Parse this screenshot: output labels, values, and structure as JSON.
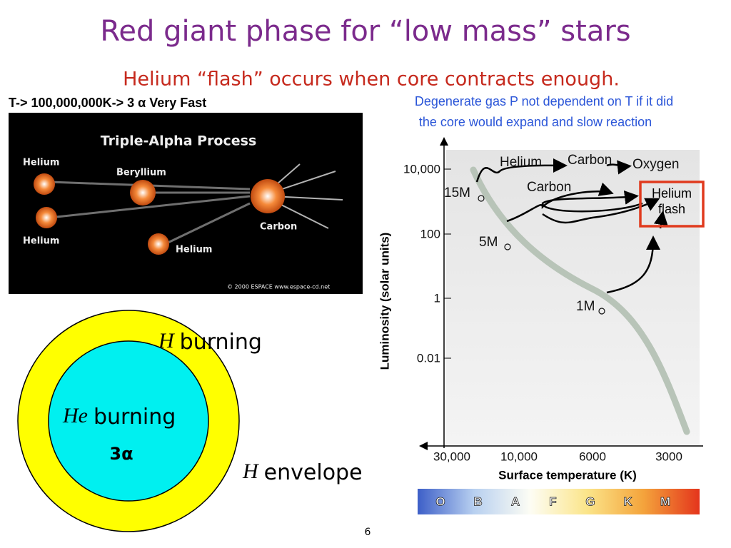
{
  "header": {
    "title": "Red giant phase for “low mass” stars",
    "subtitle": "Helium “flash” occurs when core contracts enough."
  },
  "notes": {
    "left": "T-> 100,000,000K-> 3 α  Very Fast",
    "right_lines": [
      "Degenerate gas P not dependent on T if it did",
      "the core would expand and slow reaction"
    ]
  },
  "triple_alpha": {
    "title": "Triple-Alpha Process",
    "labels": [
      "Helium",
      "Beryllium",
      "Helium",
      "Carbon",
      "Helium"
    ],
    "credit": "© 2000 ESPACE   www.espace-cd.net"
  },
  "shells": {
    "outer": {
      "symbol": "H",
      "text": "burning"
    },
    "inner": {
      "symbol": "He",
      "text": "burning"
    },
    "reaction": "3α",
    "envelope": {
      "symbol": "H",
      "text": "envelope"
    }
  },
  "hr_diagram": {
    "y_label": "Luminosity (solar units)",
    "y_tick_labels": [
      "10,000",
      "100",
      "1",
      "0.01"
    ],
    "x_label": "Surface temperature (K)",
    "x_tick_labels": [
      "30,000",
      "10,000",
      "6000",
      "3000"
    ],
    "annotations": [
      "Helium",
      "Carbon",
      "Oxygen",
      "Carbon"
    ],
    "flash_box": [
      "Helium",
      "flash"
    ],
    "masses": [
      "15M",
      "5M",
      "1M"
    ],
    "spectral_classes": [
      "O",
      "B",
      "A",
      "F",
      "G",
      "K",
      "M"
    ]
  },
  "footer": {
    "page": "6"
  }
}
